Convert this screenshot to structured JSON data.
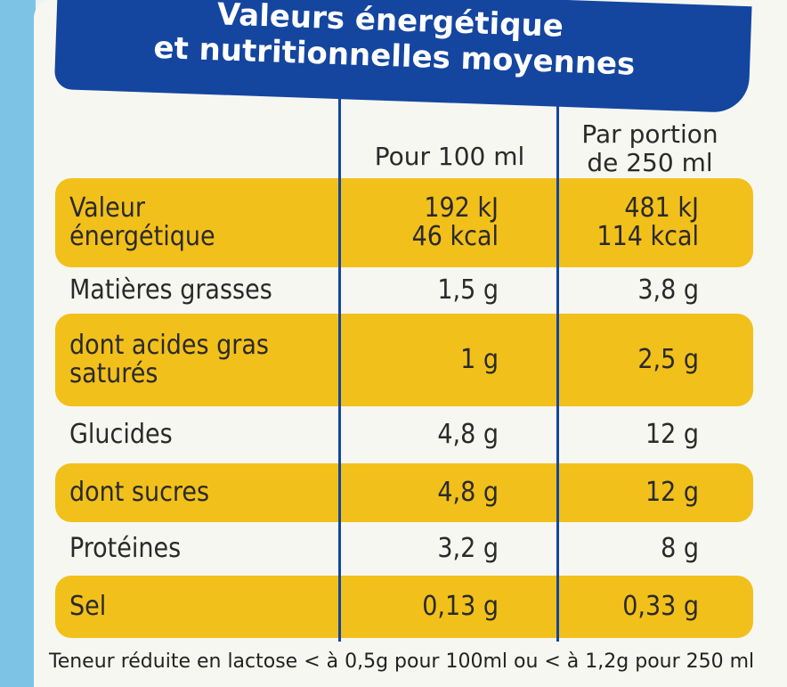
{
  "header": {
    "title_lines": [
      "Valeurs énergétique",
      "et nutritionnelles moyennes"
    ]
  },
  "table": {
    "columns": [
      "Pour 100 ml",
      "Par portion de 250 ml"
    ],
    "rows": [
      {
        "label": [
          "Valeur",
          "énergétique"
        ],
        "per_100ml": [
          "192 kJ",
          "46 kcal"
        ],
        "per_portion": [
          "481 kJ",
          "114 kcal"
        ]
      },
      {
        "label": [
          "Matières grasses"
        ],
        "per_100ml": [
          "1,5 g"
        ],
        "per_portion": [
          "3,8 g"
        ]
      },
      {
        "label": [
          "dont acides gras",
          "saturés"
        ],
        "per_100ml": [
          "1 g"
        ],
        "per_portion": [
          "2,5 g"
        ]
      },
      {
        "label": [
          "Glucides"
        ],
        "per_100ml": [
          "4,8 g"
        ],
        "per_portion": [
          "12 g"
        ]
      },
      {
        "label": [
          "dont sucres"
        ],
        "per_100ml": [
          "4,8 g"
        ],
        "per_portion": [
          "12 g"
        ]
      },
      {
        "label": [
          "Protéines"
        ],
        "per_100ml": [
          "3,2 g"
        ],
        "per_portion": [
          "8 g"
        ]
      },
      {
        "label": [
          "Sel"
        ],
        "per_100ml": [
          "0,13 g"
        ],
        "per_portion": [
          "0,33 g"
        ]
      }
    ]
  },
  "footer": "Teneur réduite en lactose < à 0,5g pour 100ml ou < à 1,2g pour 250 ml"
}
